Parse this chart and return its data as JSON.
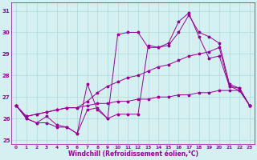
{
  "xlabel": "Windchill (Refroidissement éolien,°C)",
  "background_color": "#d4f0f0",
  "grid_color": "#b0d8d8",
  "line_color": "#990099",
  "x_ticks": [
    0,
    1,
    2,
    3,
    4,
    5,
    6,
    7,
    8,
    9,
    10,
    11,
    12,
    13,
    14,
    15,
    16,
    17,
    18,
    19,
    20,
    21,
    22,
    23
  ],
  "ylim": [
    24.8,
    31.4
  ],
  "xlim": [
    -0.5,
    23.5
  ],
  "yticks": [
    25,
    26,
    27,
    28,
    29,
    30,
    31
  ],
  "series": [
    [
      26.6,
      26.0,
      25.8,
      25.8,
      25.6,
      25.6,
      25.3,
      27.6,
      26.4,
      26.0,
      29.9,
      30.0,
      30.0,
      29.3,
      29.3,
      29.4,
      30.0,
      30.8,
      30.0,
      29.8,
      29.5,
      27.6,
      27.4,
      26.6
    ],
    [
      26.6,
      26.0,
      25.8,
      26.1,
      25.7,
      25.6,
      25.3,
      26.4,
      26.5,
      26.0,
      26.2,
      26.2,
      26.2,
      29.4,
      29.3,
      29.5,
      30.5,
      30.9,
      29.8,
      28.8,
      28.9,
      27.5,
      27.4,
      26.6
    ],
    [
      26.6,
      26.1,
      26.2,
      26.3,
      26.4,
      26.5,
      26.5,
      26.8,
      27.2,
      27.5,
      27.7,
      27.9,
      28.0,
      28.2,
      28.4,
      28.5,
      28.7,
      28.9,
      29.0,
      29.1,
      29.3,
      27.5,
      27.3,
      26.6
    ],
    [
      26.6,
      26.1,
      26.2,
      26.3,
      26.4,
      26.5,
      26.5,
      26.6,
      26.7,
      26.7,
      26.8,
      26.8,
      26.9,
      26.9,
      27.0,
      27.0,
      27.1,
      27.1,
      27.2,
      27.2,
      27.3,
      27.3,
      27.3,
      26.6
    ]
  ]
}
